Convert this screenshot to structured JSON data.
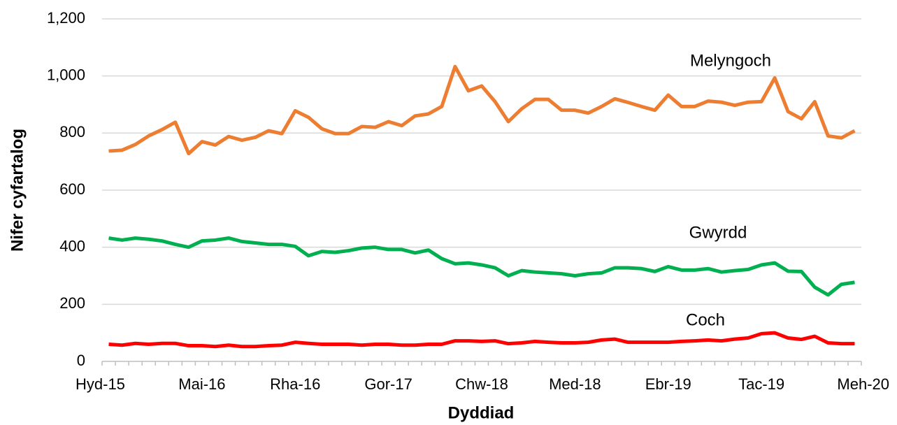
{
  "chart_data": {
    "type": "line",
    "x_label": "Dyddiad",
    "y_label": "Nifer cyfartalog",
    "categories": [
      "Hyd-15",
      null,
      null,
      null,
      null,
      null,
      null,
      "Mai-16",
      null,
      null,
      null,
      null,
      null,
      null,
      "Rha-16",
      null,
      null,
      null,
      null,
      null,
      null,
      "Gor-17",
      null,
      null,
      null,
      null,
      null,
      null,
      "Chw-18",
      null,
      null,
      null,
      null,
      null,
      null,
      "Med-18",
      null,
      null,
      null,
      null,
      null,
      null,
      "Ebr-19",
      null,
      null,
      null,
      null,
      null,
      null,
      "Tac-19",
      null,
      null,
      null,
      null,
      null,
      null,
      "Meh-20"
    ],
    "series": [
      {
        "name": "Melyngoch",
        "color": "#ed7d31",
        "values": [
          737,
          740,
          760,
          790,
          812,
          838,
          728,
          770,
          758,
          788,
          775,
          785,
          808,
          798,
          878,
          855,
          815,
          798,
          798,
          823,
          820,
          840,
          826,
          860,
          867,
          893,
          1033,
          948,
          965,
          910,
          840,
          885,
          918,
          918,
          880,
          880,
          870,
          893,
          920,
          907,
          893,
          880,
          933,
          893,
          893,
          912,
          908,
          897,
          908,
          910,
          993,
          875,
          850,
          910,
          790,
          783,
          808
        ]
      },
      {
        "name": "Gwyrdd",
        "color": "#00b050",
        "values": [
          432,
          425,
          432,
          428,
          422,
          410,
          400,
          422,
          425,
          432,
          420,
          415,
          410,
          410,
          403,
          370,
          385,
          382,
          388,
          397,
          400,
          392,
          392,
          380,
          390,
          360,
          342,
          345,
          338,
          328,
          300,
          318,
          313,
          310,
          307,
          300,
          307,
          310,
          328,
          328,
          325,
          315,
          332,
          320,
          320,
          325,
          313,
          318,
          322,
          338,
          345,
          316,
          315,
          260,
          233,
          270,
          277
        ]
      },
      {
        "name": "Coch",
        "color": "#ff0000",
        "values": [
          60,
          57,
          63,
          60,
          63,
          63,
          55,
          55,
          52,
          57,
          52,
          52,
          55,
          57,
          67,
          63,
          60,
          60,
          60,
          57,
          60,
          60,
          57,
          57,
          60,
          60,
          72,
          72,
          70,
          72,
          62,
          65,
          70,
          67,
          65,
          65,
          67,
          75,
          78,
          67,
          67,
          67,
          67,
          70,
          72,
          75,
          72,
          78,
          82,
          97,
          100,
          82,
          77,
          88,
          65,
          62,
          62
        ]
      }
    ],
    "ylim": [
      0,
      1200
    ],
    "yticks": [
      0,
      200,
      400,
      600,
      800,
      {
        "value": 1000,
        "label": "1,000"
      },
      {
        "value": 1200,
        "label": "1,200"
      }
    ],
    "grid": true
  }
}
